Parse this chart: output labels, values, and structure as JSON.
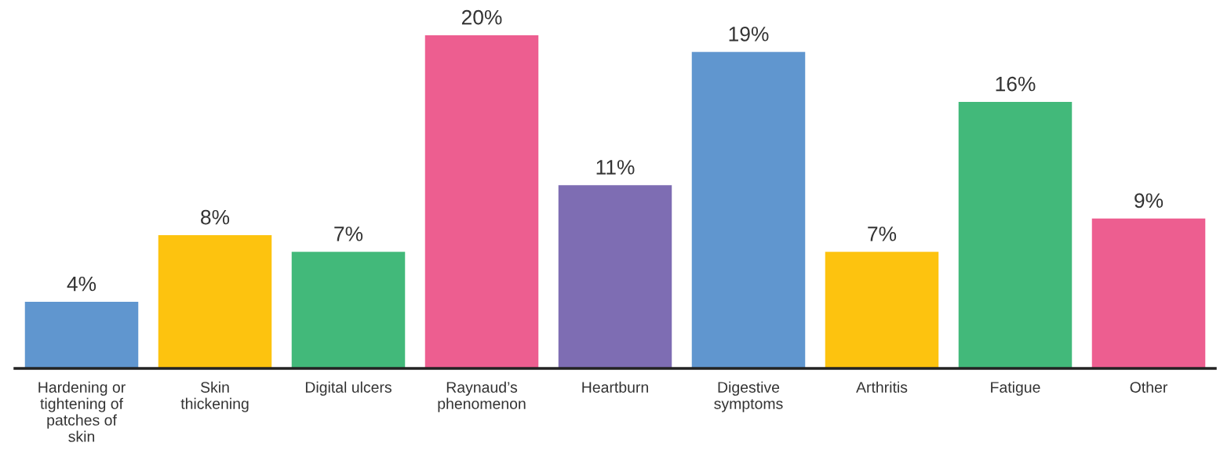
{
  "chart_data": {
    "type": "bar",
    "categories": [
      "Hardening or\ntightening of\npatches of\nskin",
      "Skin\nthickening",
      "Digital ulcers",
      "Raynaud’s\nphenomenon",
      "Heartburn",
      "Digestive\nsymptoms",
      "Arthritis",
      "Fatigue",
      "Other"
    ],
    "values": [
      4,
      8,
      7,
      20,
      11,
      19,
      7,
      16,
      9
    ],
    "colors": [
      "#6096cf",
      "#fdc30f",
      "#42b97a",
      "#ed5e90",
      "#7e6db3",
      "#6096cf",
      "#fdc30f",
      "#42b97a",
      "#ed5e90"
    ],
    "value_labels": [
      "4%",
      "8%",
      "7%",
      "20%",
      "11%",
      "19%",
      "7%",
      "16%",
      "9%"
    ],
    "grid": false,
    "legend": false
  }
}
